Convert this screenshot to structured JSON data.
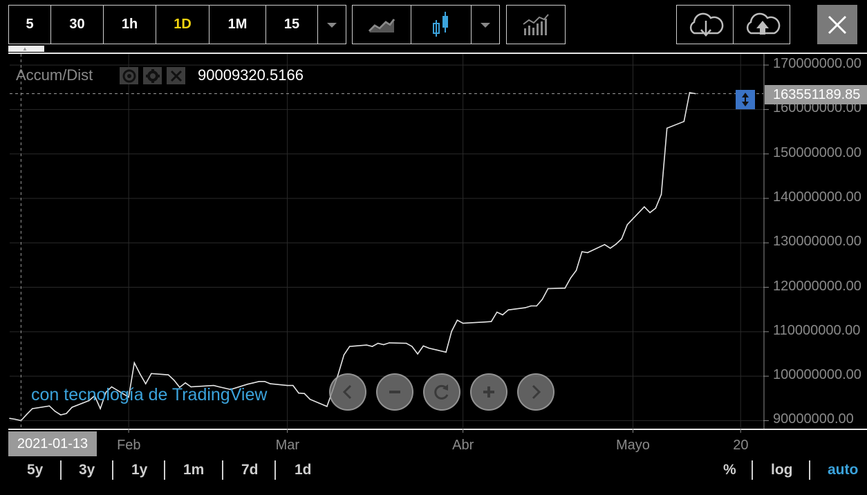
{
  "toolbar": {
    "intervals": [
      {
        "label": "5",
        "active": false
      },
      {
        "label": "30",
        "active": false
      },
      {
        "label": "1h",
        "active": false
      },
      {
        "label": "1D",
        "active": true
      },
      {
        "label": "1M",
        "active": false
      },
      {
        "label": "15",
        "active": false
      }
    ],
    "icons": [
      "chevron-down-icon",
      "line-chart-icon",
      "candlestick-icon",
      "chevron-down-icon",
      "indicators-icon",
      "cloud-download-icon",
      "cloud-upload-icon",
      "close-icon"
    ]
  },
  "indicator": {
    "name": "Accum/Dist",
    "value": "90009320.5166",
    "controls": [
      "eye-icon",
      "gear-icon",
      "close-icon"
    ]
  },
  "price_label": "163551189.85",
  "date_label": "2021-01-13",
  "watermark": "con tecnología de TradingView",
  "nav_buttons": [
    "chevron-left-icon",
    "zoom-out-icon",
    "reset-icon",
    "zoom-in-icon",
    "chevron-right-icon"
  ],
  "ranges": [
    "5y",
    "3y",
    "1y",
    "1m",
    "7d",
    "1d"
  ],
  "scale_options": [
    {
      "label": "%",
      "active": false
    },
    {
      "label": "log",
      "active": false
    },
    {
      "label": "auto",
      "active": true
    }
  ],
  "colors": {
    "line": "#e6e6e6",
    "accent": "#f5d40f",
    "link": "#3ba3dc",
    "marker": "#3a73c6"
  },
  "chart_data": {
    "type": "line",
    "series": [
      {
        "name": "Accum/Dist",
        "points": [
          [
            "2021-01-11",
            90500000
          ],
          [
            "2021-01-12",
            90300000
          ],
          [
            "2021-01-13",
            90000000
          ],
          [
            "2021-01-14",
            91400000
          ],
          [
            "2021-01-15",
            92700000
          ],
          [
            "2021-01-18",
            93300000
          ],
          [
            "2021-01-19",
            92100000
          ],
          [
            "2021-01-20",
            91300000
          ],
          [
            "2021-01-21",
            91600000
          ],
          [
            "2021-01-22",
            93000000
          ],
          [
            "2021-01-25",
            94500000
          ],
          [
            "2021-01-26",
            95600000
          ],
          [
            "2021-01-27",
            92700000
          ],
          [
            "2021-01-28",
            96400000
          ],
          [
            "2021-01-29",
            97600000
          ],
          [
            "2021-02-01",
            95300000
          ],
          [
            "2021-02-02",
            103000000
          ],
          [
            "2021-02-03",
            100500000
          ],
          [
            "2021-02-04",
            98300000
          ],
          [
            "2021-02-05",
            100600000
          ],
          [
            "2021-02-08",
            100300000
          ],
          [
            "2021-02-09",
            99100000
          ],
          [
            "2021-02-10",
            97500000
          ],
          [
            "2021-02-11",
            98500000
          ],
          [
            "2021-02-12",
            97600000
          ],
          [
            "2021-02-16",
            97900000
          ],
          [
            "2021-02-17",
            97600000
          ],
          [
            "2021-02-18",
            97300000
          ],
          [
            "2021-02-19",
            97000000
          ],
          [
            "2021-02-22",
            98200000
          ],
          [
            "2021-02-23",
            98500000
          ],
          [
            "2021-02-24",
            98800000
          ],
          [
            "2021-02-25",
            98800000
          ],
          [
            "2021-02-26",
            98300000
          ],
          [
            "2021-03-01",
            97900000
          ],
          [
            "2021-03-02",
            97900000
          ],
          [
            "2021-03-03",
            96200000
          ],
          [
            "2021-03-04",
            96100000
          ],
          [
            "2021-03-05",
            94800000
          ],
          [
            "2021-03-08",
            93200000
          ],
          [
            "2021-03-09",
            96800000
          ],
          [
            "2021-03-10",
            100500000
          ],
          [
            "2021-03-11",
            104800000
          ],
          [
            "2021-03-12",
            106700000
          ],
          [
            "2021-03-15",
            107000000
          ],
          [
            "2021-03-16",
            106700000
          ],
          [
            "2021-03-17",
            107400000
          ],
          [
            "2021-03-18",
            107100000
          ],
          [
            "2021-03-19",
            107500000
          ],
          [
            "2021-03-22",
            107400000
          ],
          [
            "2021-03-23",
            106700000
          ],
          [
            "2021-03-24",
            105000000
          ],
          [
            "2021-03-25",
            106800000
          ],
          [
            "2021-03-26",
            106300000
          ],
          [
            "2021-03-29",
            105400000
          ],
          [
            "2021-03-30",
            110100000
          ],
          [
            "2021-03-31",
            112600000
          ],
          [
            "2021-04-01",
            111900000
          ],
          [
            "2021-04-05",
            112200000
          ],
          [
            "2021-04-06",
            112300000
          ],
          [
            "2021-04-07",
            114400000
          ],
          [
            "2021-04-08",
            113800000
          ],
          [
            "2021-04-09",
            114900000
          ],
          [
            "2021-04-12",
            115400000
          ],
          [
            "2021-04-13",
            115800000
          ],
          [
            "2021-04-14",
            115800000
          ],
          [
            "2021-04-15",
            117300000
          ],
          [
            "2021-04-16",
            119700000
          ],
          [
            "2021-04-19",
            119800000
          ],
          [
            "2021-04-20",
            122100000
          ],
          [
            "2021-04-21",
            123800000
          ],
          [
            "2021-04-22",
            128000000
          ],
          [
            "2021-04-23",
            127800000
          ],
          [
            "2021-04-26",
            129600000
          ],
          [
            "2021-04-27",
            128800000
          ],
          [
            "2021-04-28",
            129700000
          ],
          [
            "2021-04-29",
            130900000
          ],
          [
            "2021-04-30",
            134100000
          ],
          [
            "2021-05-03",
            138100000
          ],
          [
            "2021-05-04",
            136800000
          ],
          [
            "2021-05-05",
            137800000
          ],
          [
            "2021-05-06",
            140900000
          ],
          [
            "2021-05-07",
            155800000
          ],
          [
            "2021-05-10",
            157300000
          ],
          [
            "2021-05-11",
            163800000
          ],
          [
            "2021-05-12",
            163550000
          ]
        ]
      }
    ],
    "x_tick_labels": [
      "Feb",
      "Mar",
      "Abr",
      "Mayo",
      "20"
    ],
    "x_tick_dates": [
      "2021-02-01",
      "2021-03-01",
      "2021-04-01",
      "2021-05-01",
      "2021-05-20"
    ],
    "x_range": [
      "2021-01-11",
      "2021-05-24"
    ],
    "y_tick_labels": [
      "170000000.00",
      "160000000.00",
      "150000000.00",
      "140000000.00",
      "130000000.00",
      "120000000.00",
      "110000000.00",
      "100000000.00",
      "90000000.00"
    ],
    "y_ticks": [
      170000000,
      160000000,
      150000000,
      140000000,
      130000000,
      120000000,
      110000000,
      100000000,
      90000000
    ],
    "ylim": [
      88200000,
      172500000
    ],
    "crosshair": {
      "x": "2021-01-13",
      "y": 163551189.85
    },
    "grid": true,
    "legend": "none"
  }
}
